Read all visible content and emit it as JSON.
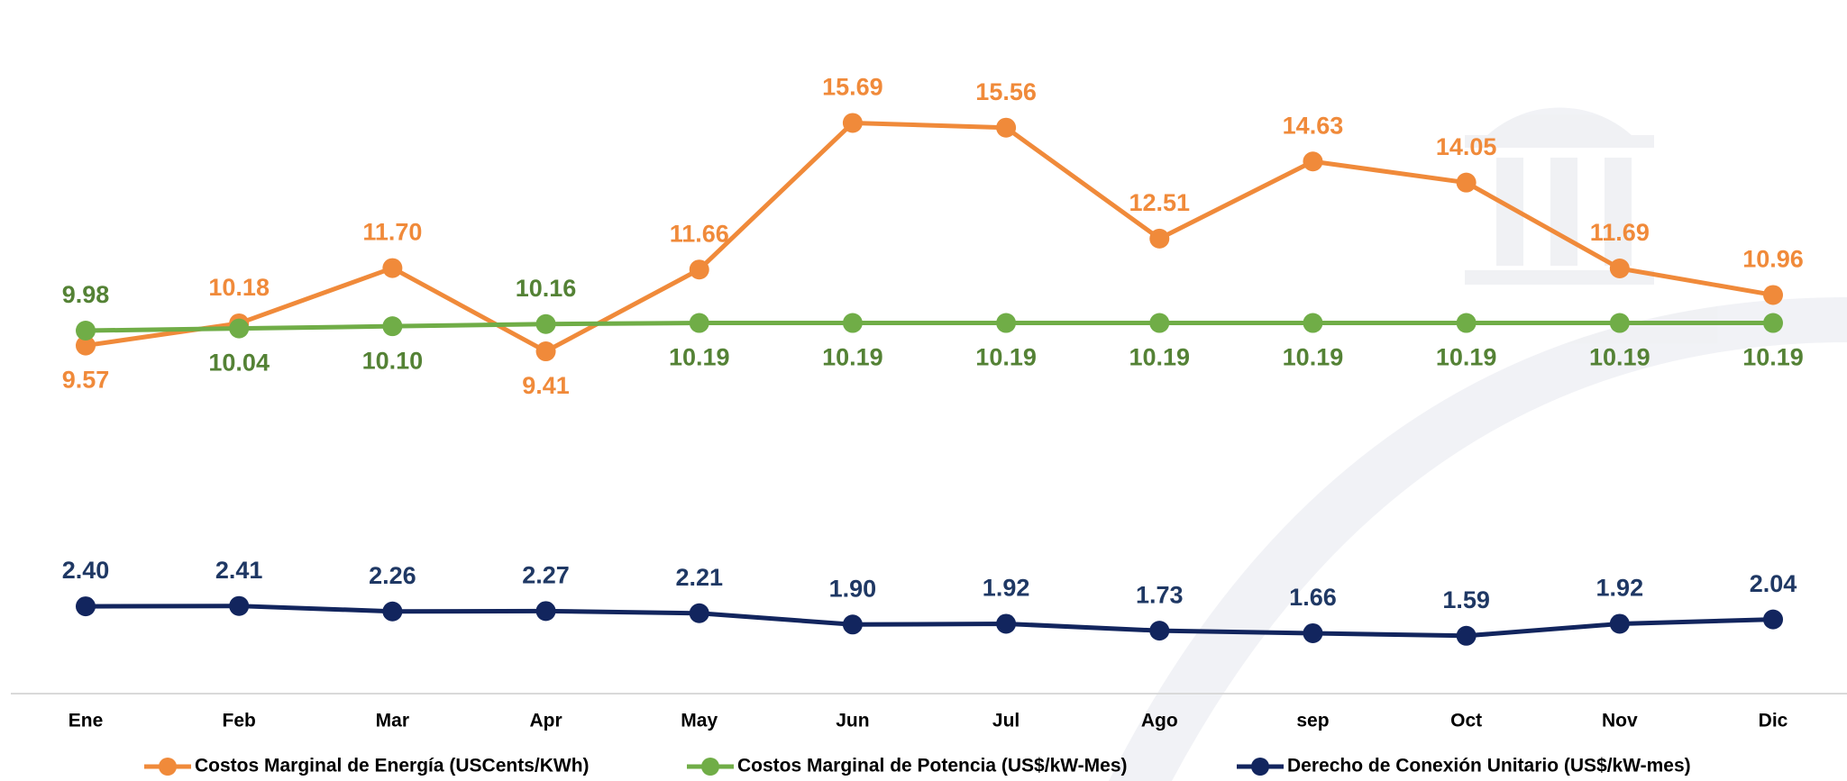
{
  "chart_data": {
    "type": "line",
    "categories": [
      "Ene",
      "Feb",
      "Mar",
      "Apr",
      "May",
      "Jun",
      "Jul",
      "Ago",
      "sep",
      "Oct",
      "Nov",
      "Dic"
    ],
    "ylim": [
      0,
      18.5
    ],
    "series": [
      {
        "name": "Costos Marginal de Energía (USCents/KWh)",
        "color": "#f08a3a",
        "label_color": "#f08a3a",
        "values": [
          9.57,
          10.18,
          11.7,
          9.41,
          11.66,
          15.69,
          15.56,
          12.51,
          14.63,
          14.05,
          11.69,
          10.96
        ],
        "value_labels": [
          "9.57",
          "10.18",
          "11.70",
          "9.41",
          "11.66",
          "15.69",
          "15.56",
          "12.51",
          "14.63",
          "14.05",
          "11.69",
          "10.96"
        ]
      },
      {
        "name": "Costos Marginal de Potencia  (US$/kW-Mes)",
        "color": "#70ad47",
        "label_color": "#548235",
        "values": [
          9.98,
          10.04,
          10.1,
          10.16,
          10.19,
          10.19,
          10.19,
          10.19,
          10.19,
          10.19,
          10.19,
          10.19
        ],
        "value_labels": [
          "9.98",
          "10.04",
          "10.10",
          "10.16",
          "10.19",
          "10.19",
          "10.19",
          "10.19",
          "10.19",
          "10.19",
          "10.19",
          "10.19"
        ]
      },
      {
        "name": "Derecho de Conexión Unitario (US$/kW-mes)",
        "color": "#12255e",
        "label_color": "#1f3864",
        "values": [
          2.4,
          2.41,
          2.26,
          2.27,
          2.21,
          1.9,
          1.92,
          1.73,
          1.66,
          1.59,
          1.92,
          2.04
        ],
        "value_labels": [
          "2.40",
          "2.41",
          "2.26",
          "2.27",
          "2.21",
          "1.90",
          "1.92",
          "1.73",
          "1.66",
          "1.59",
          "1.92",
          "2.04"
        ]
      }
    ]
  }
}
